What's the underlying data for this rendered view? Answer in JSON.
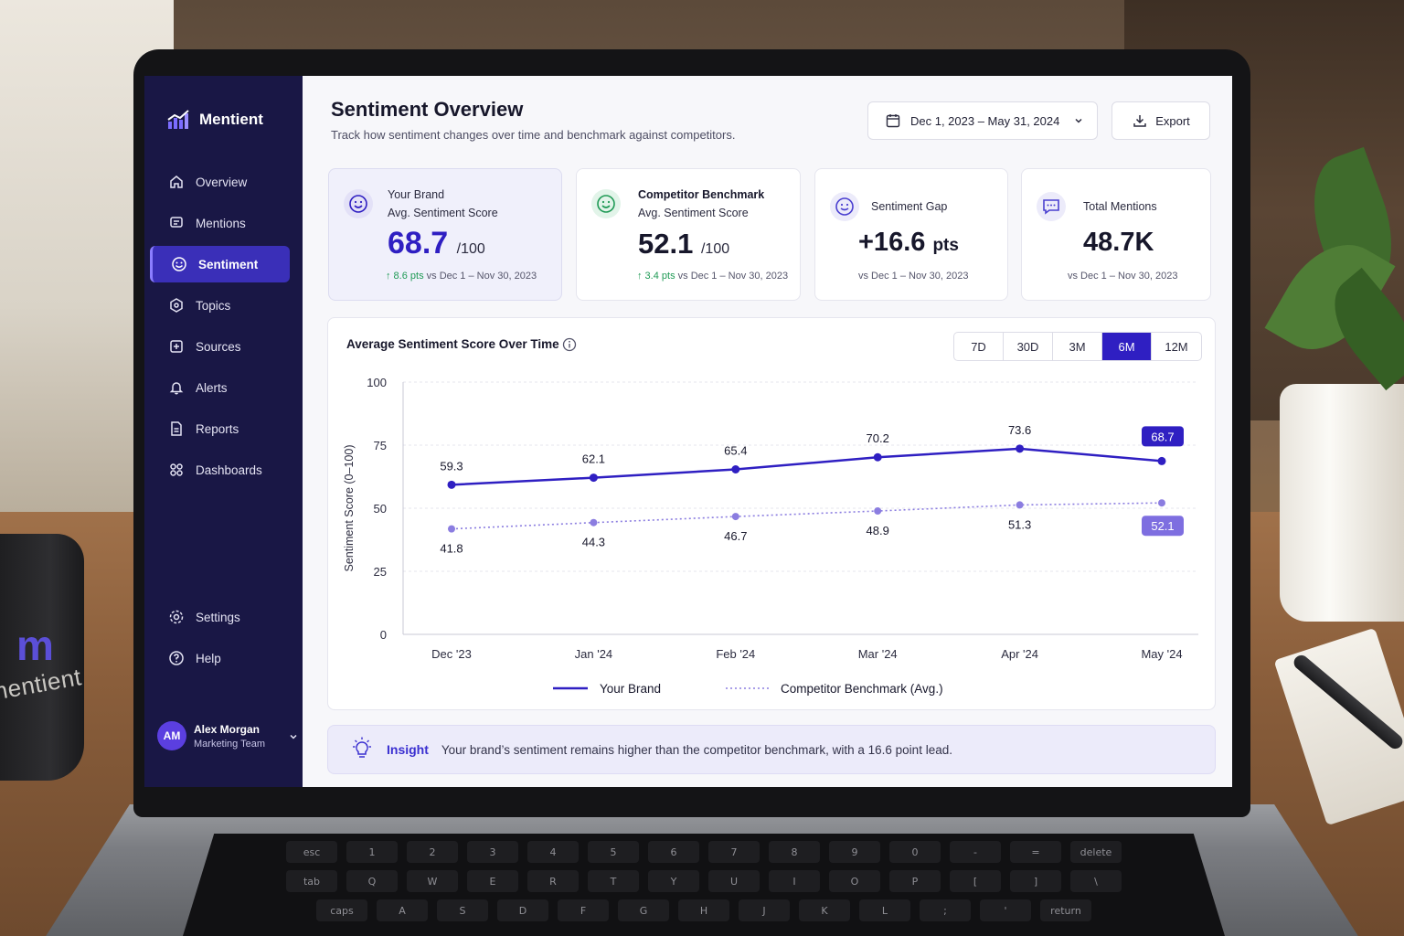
{
  "app": {
    "name": "Mentient"
  },
  "sidebar": {
    "items": [
      {
        "label": "Overview",
        "icon": "home-icon",
        "active": false
      },
      {
        "label": "Mentions",
        "icon": "message-icon",
        "active": false
      },
      {
        "label": "Sentiment",
        "icon": "smile-icon",
        "active": true
      },
      {
        "label": "Topics",
        "icon": "topics-icon",
        "active": false
      },
      {
        "label": "Sources",
        "icon": "sources-icon",
        "active": false
      },
      {
        "label": "Alerts",
        "icon": "bell-icon",
        "active": false
      },
      {
        "label": "Reports",
        "icon": "report-icon",
        "active": false
      },
      {
        "label": "Dashboards",
        "icon": "grid-icon",
        "active": false
      }
    ],
    "bottom_items": [
      {
        "label": "Settings",
        "icon": "gear-icon"
      },
      {
        "label": "Help",
        "icon": "help-icon"
      }
    ],
    "user": {
      "initials": "AM",
      "name": "Alex Morgan",
      "role": "Marketing Team"
    }
  },
  "header": {
    "title": "Sentiment Overview",
    "subtitle": "Track how sentiment changes over time and benchmark against competitors.",
    "date_range": "Dec 1, 2023 – May 31, 2024",
    "export_label": "Export"
  },
  "cards": {
    "brand": {
      "label_line1": "Your Brand",
      "label_line2": "Avg. Sentiment Score",
      "value": "68.7",
      "unit": "/100",
      "delta": "↑ 8.6 pts",
      "compare": " vs Dec 1 – Nov 30, 2023"
    },
    "competitor": {
      "label_line1": "Competitor Benchmark",
      "label_line2": "Avg. Sentiment Score",
      "value": "52.1",
      "unit": "/100",
      "delta": "↑ 3.4 pts",
      "compare": " vs Dec 1 – Nov 30, 2023"
    },
    "gap": {
      "label": "Sentiment Gap",
      "value": "+16.6",
      "unit": "pts",
      "compare": "vs Dec 1 – Nov 30, 2023"
    },
    "mentions": {
      "label": "Total Mentions",
      "value": "48.7K",
      "compare": "vs Dec 1 – Nov 30, 2023"
    }
  },
  "chart_section": {
    "title": "Average Sentiment Score Over Time",
    "ranges": [
      "7D",
      "30D",
      "3M",
      "6M",
      "12M"
    ],
    "active_range": "6M"
  },
  "chart_data": {
    "type": "line",
    "x": [
      "Dec '23",
      "Jan '24",
      "Feb '24",
      "Mar '24",
      "Apr '24",
      "May '24"
    ],
    "ylabel": "Sentiment Score (0–100)",
    "ylim": [
      0,
      100
    ],
    "yticks": [
      0,
      25,
      50,
      75,
      100
    ],
    "grid": true,
    "legend_position": "bottom",
    "series": [
      {
        "name": "Your Brand",
        "values": [
          59.3,
          62.1,
          65.4,
          70.2,
          73.6,
          68.7
        ],
        "color": "#2f1fc2",
        "style": "solid"
      },
      {
        "name": "Competitor Benchmark (Avg.)",
        "values": [
          41.8,
          44.3,
          46.7,
          48.9,
          51.3,
          52.1
        ],
        "color": "#8b7de0",
        "style": "dotted"
      }
    ]
  },
  "insight": {
    "label": "Insight",
    "text": "Your brand’s sentiment remains higher than the competitor benchmark, with a 16.6 point lead."
  },
  "mug": {
    "letter": "m",
    "text": "mentient"
  },
  "keyboard": {
    "rows": [
      [
        "esc",
        "1",
        "2",
        "3",
        "4",
        "5",
        "6",
        "7",
        "8",
        "9",
        "0",
        "-",
        "=",
        "delete"
      ],
      [
        "tab",
        "Q",
        "W",
        "E",
        "R",
        "T",
        "Y",
        "U",
        "I",
        "O",
        "P",
        "[",
        "]",
        "\\"
      ],
      [
        "caps",
        "A",
        "S",
        "D",
        "F",
        "G",
        "H",
        "J",
        "K",
        "L",
        ";",
        "'",
        "return"
      ]
    ]
  },
  "colors": {
    "sidebar": "#191745",
    "accent": "#2f1fc2",
    "competitor": "#8b7de0",
    "positive": "#1f9a55"
  }
}
